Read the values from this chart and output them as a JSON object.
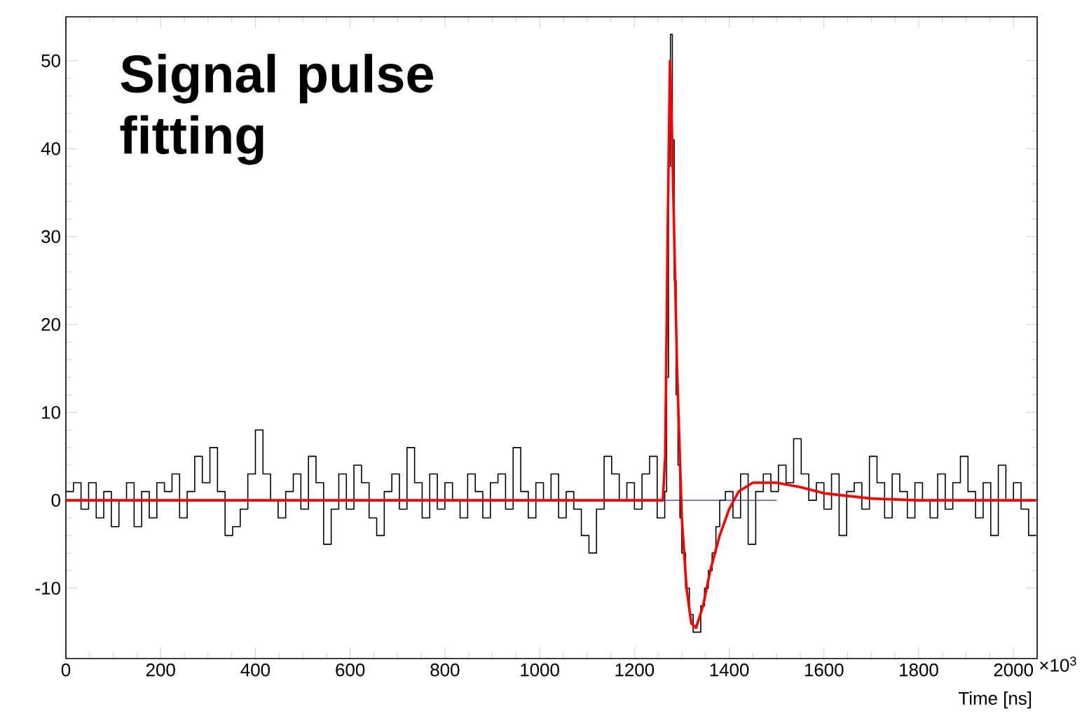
{
  "chart_data": {
    "type": "step",
    "title": "Signal pulse fitting",
    "xlabel": "Time [ns]",
    "annotations": [
      "×10$^{3}$"
    ],
    "xlim": [
      0,
      2050
    ],
    "ylim": [
      -18,
      55
    ],
    "xticks": [
      0,
      200,
      400,
      600,
      800,
      1000,
      1200,
      1400,
      1600,
      1800,
      2000
    ],
    "yticks": [
      -10,
      0,
      10,
      20,
      30,
      40,
      50
    ],
    "series": [
      {
        "color": "#000000",
        "x": [
          0,
          16,
          32,
          48,
          64,
          80,
          96,
          112,
          128,
          144,
          160,
          176,
          192,
          208,
          224,
          240,
          256,
          272,
          288,
          304,
          320,
          336,
          352,
          368,
          384,
          400,
          416,
          432,
          448,
          464,
          480,
          496,
          512,
          528,
          544,
          560,
          576,
          592,
          608,
          624,
          640,
          656,
          672,
          688,
          704,
          720,
          736,
          752,
          768,
          784,
          800,
          816,
          832,
          848,
          864,
          880,
          896,
          912,
          928,
          944,
          960,
          976,
          992,
          1008,
          1024,
          1040,
          1056,
          1072,
          1088,
          1104,
          1120,
          1136,
          1152,
          1168,
          1184,
          1200,
          1216,
          1232,
          1248,
          1264,
          1268,
          1272,
          1276,
          1280,
          1284,
          1288,
          1292,
          1296,
          1300,
          1308,
          1316,
          1324,
          1332,
          1340,
          1348,
          1356,
          1364,
          1372,
          1380,
          1392,
          1408,
          1424,
          1440,
          1456,
          1472,
          1488,
          1504,
          1520,
          1536,
          1552,
          1568,
          1584,
          1600,
          1616,
          1632,
          1648,
          1664,
          1680,
          1696,
          1712,
          1728,
          1744,
          1760,
          1776,
          1792,
          1808,
          1824,
          1840,
          1856,
          1872,
          1888,
          1904,
          1920,
          1936,
          1952,
          1968,
          1984,
          2000,
          2016,
          2032,
          2048
        ],
        "values": [
          1,
          2,
          -1,
          2,
          -2,
          1,
          -3,
          0,
          2,
          -3,
          1,
          -2,
          2,
          1,
          3,
          -2,
          1,
          5,
          2,
          6,
          1,
          -4,
          -3,
          -1,
          3,
          8,
          3,
          0,
          -2,
          1,
          3,
          -1,
          5,
          2,
          -5,
          -1,
          3,
          -1,
          4,
          2,
          -2,
          -4,
          1,
          3,
          -1,
          6,
          2,
          -2,
          3,
          -1,
          2,
          0,
          -2,
          3,
          1,
          -2,
          2,
          3,
          -1,
          6,
          1,
          -2,
          2,
          0,
          3,
          -2,
          1,
          -1,
          -4,
          -6,
          -1,
          5,
          3,
          0,
          2,
          -1,
          3,
          5,
          -2,
          1,
          14,
          38,
          53,
          41,
          25,
          12,
          4,
          -2,
          -6,
          -10,
          -13,
          -15,
          -15,
          -12,
          -10,
          -8,
          -6,
          -3,
          0,
          1,
          -2,
          3,
          -5,
          1,
          3,
          1,
          4,
          2,
          7,
          3,
          0,
          2,
          -1,
          3,
          -4,
          1,
          2,
          -1,
          5,
          2,
          -2,
          3,
          1,
          -2,
          2,
          0,
          -2,
          3,
          -1,
          2,
          5,
          1,
          -2,
          2,
          -4,
          4,
          0,
          2,
          -1,
          -4,
          -4
        ]
      },
      {
        "type": "line",
        "color": "#ff0000",
        "x": [
          0,
          1260,
          1265,
          1270,
          1275,
          1280,
          1290,
          1300,
          1310,
          1320,
          1330,
          1345,
          1360,
          1380,
          1400,
          1420,
          1450,
          1500,
          1550,
          1600,
          1700,
          1800,
          2048
        ],
        "values": [
          0,
          0,
          5,
          30,
          50,
          40,
          15,
          -2,
          -10,
          -14,
          -14.5,
          -12,
          -8,
          -4,
          -1,
          1,
          2,
          2,
          1.5,
          0.8,
          0.2,
          0,
          0
        ]
      },
      {
        "type": "line",
        "color": "#3333aa",
        "x": [
          1260,
          1500
        ],
        "values": [
          0,
          0
        ]
      }
    ]
  }
}
